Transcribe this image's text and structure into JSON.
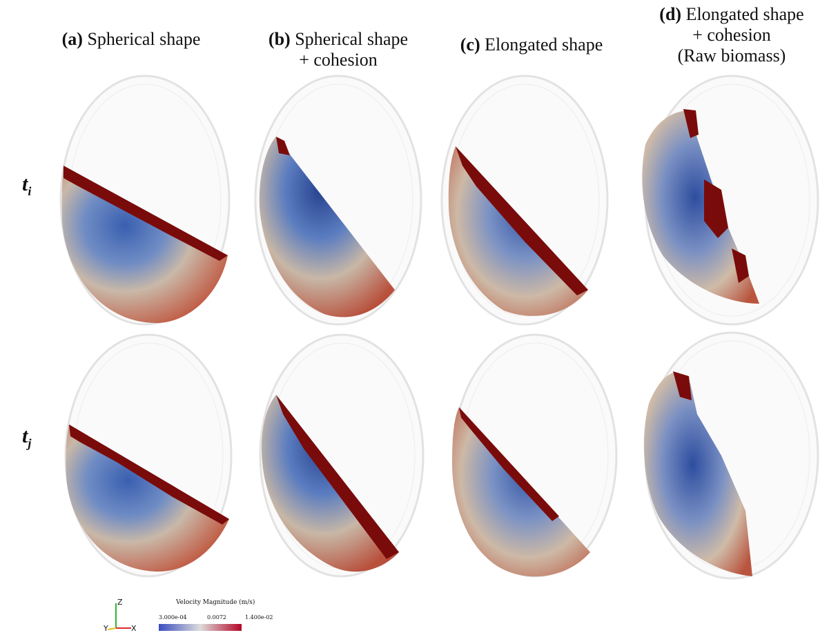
{
  "columns": [
    {
      "letter": "(a)",
      "line1": "Spherical shape",
      "line2": "",
      "line3": ""
    },
    {
      "letter": "(b)",
      "line1": "Spherical shape",
      "line2": "+ cohesion",
      "line3": ""
    },
    {
      "letter": "(c)",
      "line1": "Elongated shape",
      "line2": "",
      "line3": ""
    },
    {
      "letter": "(d)",
      "line1": "Elongated shape",
      "line2": "+ cohesion",
      "line3": "(Raw biomass)"
    }
  ],
  "rows": [
    {
      "base": "t",
      "sub": "i"
    },
    {
      "base": "t",
      "sub": "j"
    }
  ],
  "legend": {
    "title": "Velocity Magnitude (m/s)",
    "min": "3.000e-04",
    "mid": "0.0072",
    "max": "1.400e-02",
    "axis_z": "Z",
    "axis_y": "Y",
    "axis_x": "X"
  },
  "colors": {
    "low": "#3b4cc0",
    "mid": "#d8c9b8",
    "high": "#b40426",
    "top_layer": "#7f0a0a",
    "drum": "#dcdcdc"
  }
}
